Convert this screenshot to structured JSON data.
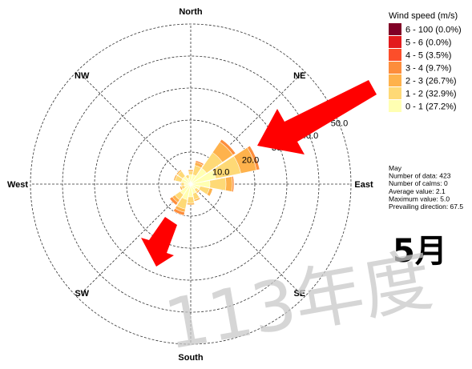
{
  "chart_data": {
    "type": "wind-rose",
    "directions": [
      "North",
      "NE",
      "East",
      "SE",
      "South",
      "SW",
      "West",
      "NW"
    ],
    "radial_axis": {
      "ticks": [
        10.0,
        20.0,
        30.0,
        40.0,
        50.0
      ],
      "max": 50.0
    },
    "legend": {
      "title": "Wind speed (m/s)",
      "bins": [
        {
          "label": "6 - 100 (0.0%)",
          "color": "#800026"
        },
        {
          "label": "5 - 6 (0.0%)",
          "color": "#e31a1c"
        },
        {
          "label": "4 - 5 (3.5%)",
          "color": "#fc4e2a"
        },
        {
          "label": "3 - 4 (9.7%)",
          "color": "#fd8d3c"
        },
        {
          "label": "2 - 3 (26.7%)",
          "color": "#feb24c"
        },
        {
          "label": "1 - 2 (32.9%)",
          "color": "#fed976"
        },
        {
          "label": "0 - 1 (27.2%)",
          "color": "#ffffb2"
        }
      ]
    },
    "petals": [
      {
        "direction": 0,
        "cumulative": [
          3,
          4,
          4.5,
          4.5
        ]
      },
      {
        "direction": 22.5,
        "cumulative": [
          3,
          6,
          7,
          7.5
        ]
      },
      {
        "direction": 45,
        "cumulative": [
          6,
          12,
          16,
          17
        ]
      },
      {
        "direction": 67.5,
        "cumulative": [
          8,
          16,
          21,
          22
        ]
      },
      {
        "direction": 90,
        "cumulative": [
          6,
          11,
          13,
          13.5
        ]
      },
      {
        "direction": 112.5,
        "cumulative": [
          3,
          6,
          7,
          7
        ]
      },
      {
        "direction": 135,
        "cumulative": [
          2,
          3,
          3.5,
          3.5
        ]
      },
      {
        "direction": 157.5,
        "cumulative": [
          3,
          5,
          5.5,
          5.5
        ]
      },
      {
        "direction": 180,
        "cumulative": [
          4,
          6,
          6.5,
          6.5
        ]
      },
      {
        "direction": 202.5,
        "cumulative": [
          5,
          8,
          9,
          10
        ]
      },
      {
        "direction": 225,
        "cumulative": [
          4,
          6,
          7,
          8
        ]
      },
      {
        "direction": 247.5,
        "cumulative": [
          2,
          3,
          3.5,
          3.5
        ]
      },
      {
        "direction": 270,
        "cumulative": [
          2,
          3,
          3,
          3
        ]
      },
      {
        "direction": 292.5,
        "cumulative": [
          3,
          5,
          5.5,
          5.5
        ]
      },
      {
        "direction": 315,
        "cumulative": [
          3,
          5,
          5.5,
          5.5
        ]
      },
      {
        "direction": 337.5,
        "cumulative": [
          2,
          3,
          3,
          3
        ]
      }
    ],
    "stats": [
      "May",
      "Number of data: 423",
      "Number of calms: 0",
      "Average value: 2.1",
      "Maximum value: 5.0",
      "Prevailing direction: 67.5"
    ]
  },
  "overlay": {
    "month": "5月",
    "watermark": "113年度",
    "arrow_color": "#ff0000"
  }
}
